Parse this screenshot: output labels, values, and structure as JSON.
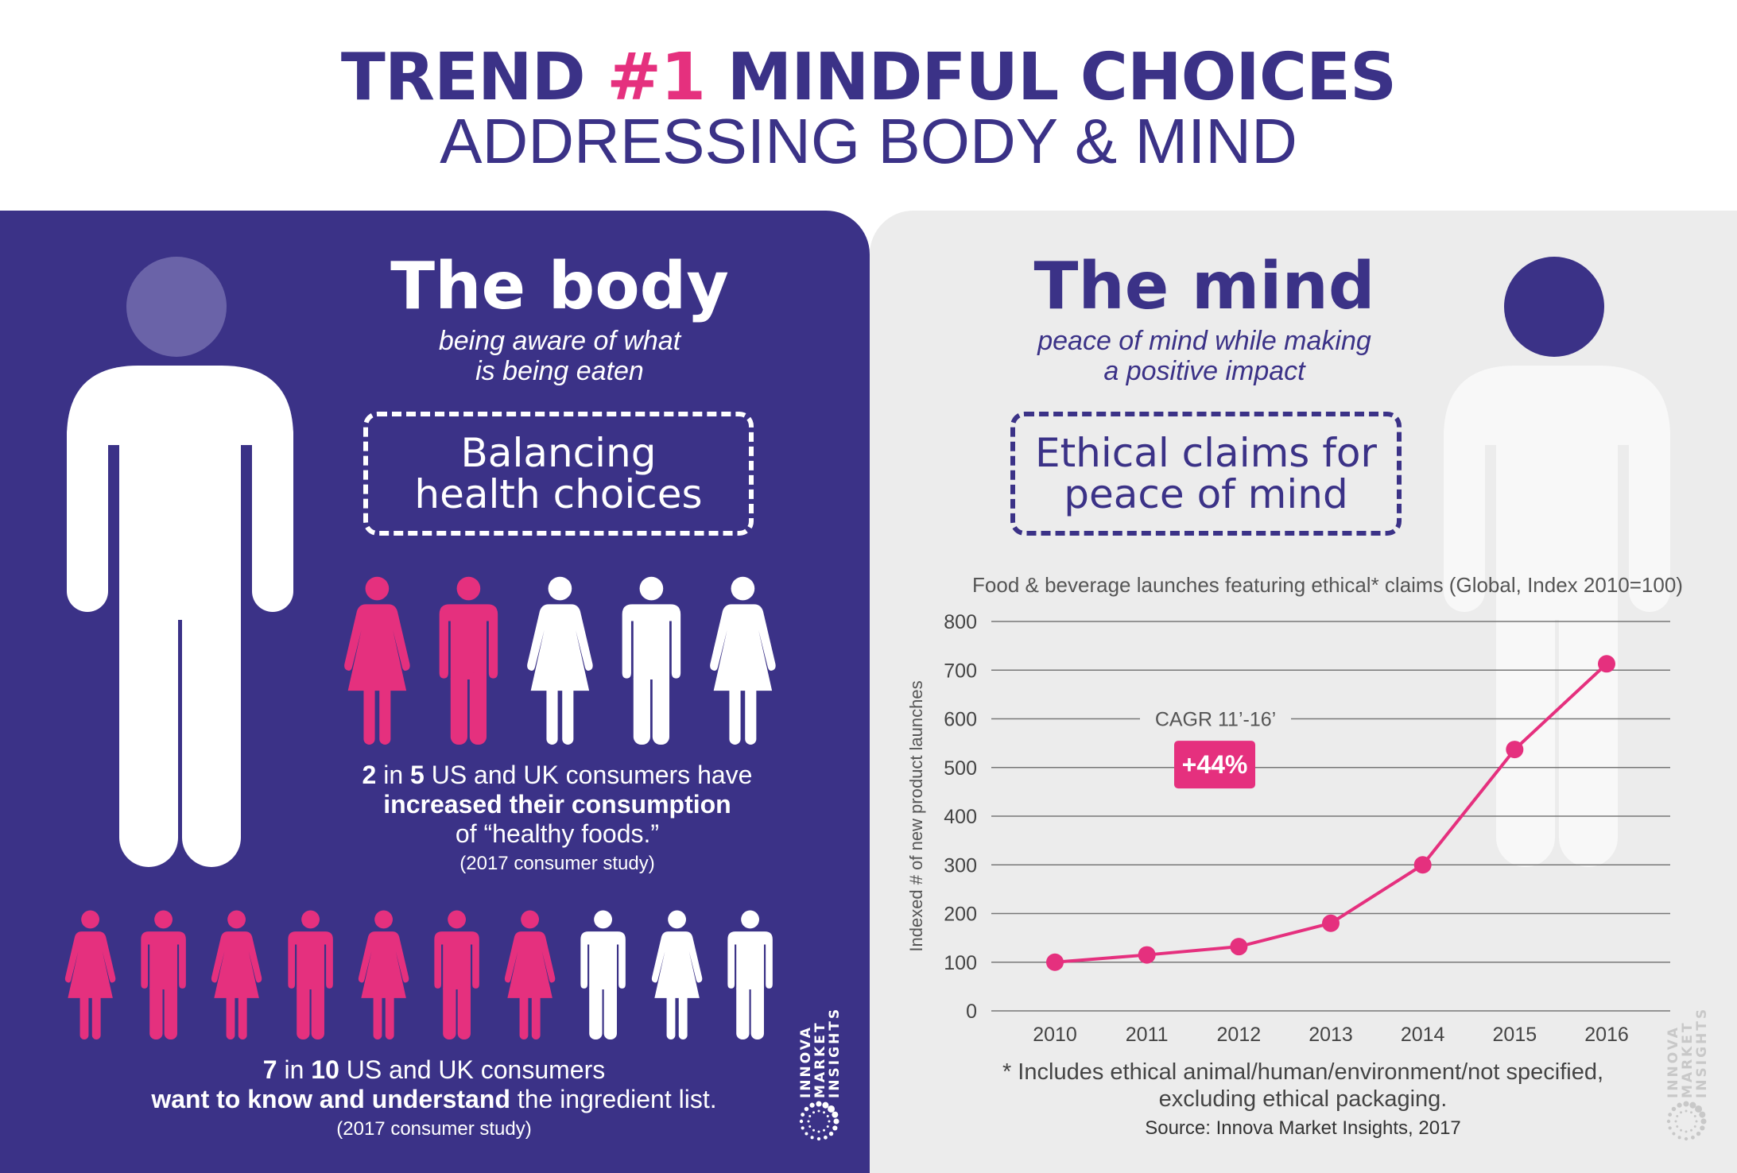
{
  "header": {
    "title_prefix": "TREND",
    "title_number": "#1",
    "title_main": "MINDFUL CHOICES",
    "subtitle": "ADDRESSING BODY & MIND"
  },
  "colors": {
    "purple": "#3b3287",
    "pink": "#e5307e",
    "grey": "#ececec",
    "white": "#ffffff",
    "head_light": "#6a63a8"
  },
  "body": {
    "heading": "The body",
    "tagline_1": "being aware of what",
    "tagline_2": "is being eaten",
    "box_line_1": "Balancing",
    "box_line_2": "health choices",
    "row1_figures": [
      {
        "type": "woman",
        "color": "pink"
      },
      {
        "type": "man",
        "color": "pink"
      },
      {
        "type": "woman",
        "color": "white"
      },
      {
        "type": "man",
        "color": "white"
      },
      {
        "type": "woman",
        "color": "white"
      }
    ],
    "stat1": {
      "num": "2",
      "in": " in ",
      "den": "5",
      "rest": " US and UK consumers have",
      "bold": "increased their consumption",
      "line3": "of “healthy foods.”",
      "source": "(2017 consumer study)"
    },
    "row2_figures": [
      {
        "type": "woman",
        "color": "pink"
      },
      {
        "type": "man",
        "color": "pink"
      },
      {
        "type": "woman",
        "color": "pink"
      },
      {
        "type": "man",
        "color": "pink"
      },
      {
        "type": "woman",
        "color": "pink"
      },
      {
        "type": "man",
        "color": "pink"
      },
      {
        "type": "woman",
        "color": "pink"
      },
      {
        "type": "man",
        "color": "white"
      },
      {
        "type": "woman",
        "color": "white"
      },
      {
        "type": "man",
        "color": "white"
      }
    ],
    "stat2": {
      "num": "7",
      "in": " in ",
      "den": "10",
      "rest": " US and UK consumers",
      "bold": "want to know and understand",
      "rest2": " the ingredient list.",
      "source": "(2017 consumer study)"
    }
  },
  "logo": {
    "line1": "INNOVA",
    "line2": "MARKET",
    "line3": "INSIGHTS"
  },
  "mind": {
    "heading": "The mind",
    "tagline_1": "peace of mind while making",
    "tagline_2": "a positive impact",
    "box_line_1": "Ethical claims for",
    "box_line_2": "peace of mind",
    "footnote_1": "* Includes ethical animal/human/environment/not specified,",
    "footnote_2": "excluding ethical packaging.",
    "source": "Source: Innova Market Insights, 2017"
  },
  "chart_data": {
    "type": "line",
    "title": "Food & beverage launches featuring ethical* claims (Global, Index 2010=100)",
    "xlabel": "",
    "ylabel": "Indexed # of new product launches",
    "categories": [
      "2010",
      "2011",
      "2012",
      "2013",
      "2014",
      "2015",
      "2016"
    ],
    "values": [
      100,
      115,
      132,
      180,
      300,
      537,
      713
    ],
    "ylim": [
      0,
      800
    ],
    "yticks": [
      0,
      100,
      200,
      300,
      400,
      500,
      600,
      700,
      800
    ],
    "grid": true,
    "annotation_label": "CAGR 11’-16’",
    "annotation_value": "+44%",
    "color": "#e5307e"
  }
}
